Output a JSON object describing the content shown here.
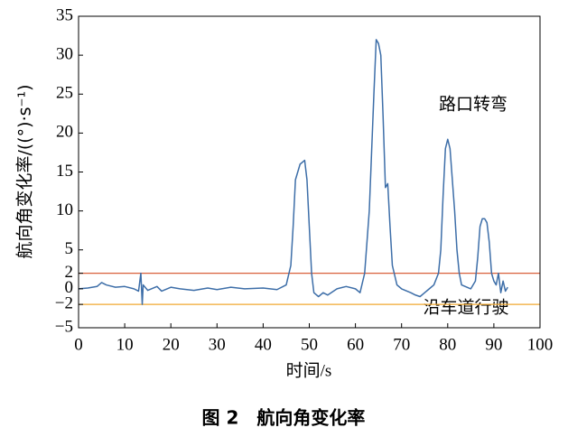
{
  "chart_data": {
    "type": "line",
    "caption": "图 2　航向角变化率",
    "xlabel": "时间/s",
    "ylabel": "航向角变化率/((°)·s⁻¹)",
    "annotations": [
      "路口转弯",
      "沿车道行驶"
    ],
    "xlim": [
      0,
      100
    ],
    "xticks": [
      0,
      10,
      20,
      30,
      40,
      50,
      60,
      70,
      80,
      90,
      100
    ],
    "ylim": [
      -5,
      35
    ],
    "yticks": [
      {
        "value": -5,
        "label": "−5"
      },
      {
        "value": -2,
        "label": "−2"
      },
      0,
      2,
      5,
      10,
      15,
      20,
      25,
      30,
      35
    ],
    "reference_lines": [
      {
        "value": 2,
        "color": "#d9603b"
      },
      {
        "value": -2,
        "color": "#f0a830"
      }
    ],
    "series": [
      {
        "color": "#3d6ea8",
        "x": [
          0,
          2,
          4,
          5,
          6,
          8,
          10,
          12,
          13,
          13.5,
          13.8,
          14,
          15,
          17,
          18,
          20,
          22,
          25,
          28,
          30,
          33,
          36,
          40,
          43,
          45,
          46,
          46.5,
          47,
          48,
          49,
          49.5,
          50,
          50.5,
          51,
          52,
          53,
          54,
          56,
          58,
          60,
          61,
          62,
          63,
          64,
          64.5,
          65,
          65.5,
          66,
          66.5,
          67,
          67.5,
          68,
          69,
          70,
          72,
          73,
          74,
          75,
          76,
          77,
          78,
          78.5,
          79,
          79.5,
          80,
          80.5,
          81,
          81.5,
          82,
          82.5,
          83,
          85,
          86,
          86.5,
          87,
          87.5,
          88,
          88.5,
          89,
          89.5,
          90,
          90.5,
          91,
          91.5,
          92,
          92.5,
          93
        ],
        "values": [
          0,
          0.1,
          0.3,
          0.8,
          0.5,
          0.2,
          0.3,
          0,
          -0.3,
          2,
          -2,
          0.5,
          -0.2,
          0.3,
          -0.3,
          0.2,
          0,
          -0.2,
          0.1,
          -0.1,
          0.2,
          0,
          0.1,
          -0.1,
          0.5,
          3,
          8,
          14,
          16,
          16.5,
          14,
          8,
          2,
          -0.5,
          -1,
          -0.5,
          -0.8,
          0,
          0.3,
          0,
          -0.5,
          2,
          10,
          25,
          32,
          31.5,
          30,
          22,
          13,
          13.5,
          8,
          3,
          0.5,
          0,
          -0.5,
          -0.8,
          -1,
          -0.5,
          0,
          0.5,
          2,
          5,
          12,
          18,
          19.2,
          18,
          14,
          10,
          5,
          2,
          0.5,
          0,
          1,
          4,
          8,
          9,
          9,
          8.5,
          6,
          2,
          1,
          0.5,
          2,
          -0.5,
          1,
          -0.3,
          0.2
        ]
      }
    ]
  }
}
